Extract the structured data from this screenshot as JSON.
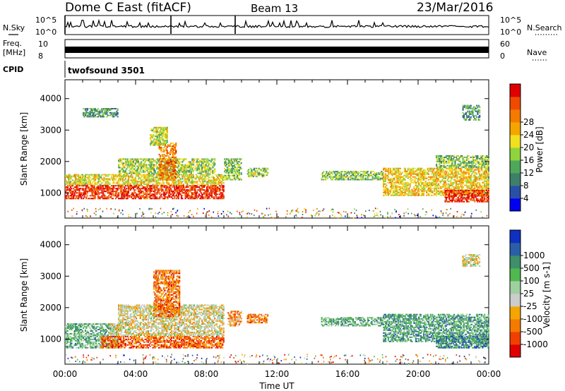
{
  "header": {
    "radar": "Dome C East (fitACF)",
    "beam": "Beam 13",
    "date": "23/Mar/2016"
  },
  "panels": {
    "nsky": {
      "label": "N.Sky",
      "ticks": [
        "10^5",
        "10^0"
      ]
    },
    "nsearch": {
      "label": "N.Search",
      "ticks": [
        "10^5",
        "10^0"
      ]
    },
    "freq": {
      "label_line1": "Freq.",
      "label_line2": "[MHz]",
      "ticks": [
        "10",
        "8"
      ]
    },
    "nave": {
      "label": "Nave",
      "ticks": [
        "60",
        "0"
      ]
    },
    "cpid": {
      "label": "CPID",
      "value": "twofsound 3501"
    }
  },
  "colors": {
    "power": [
      "#0000f0",
      "#2a4fa8",
      "#3e7f6a",
      "#4fa85a",
      "#8fd43c",
      "#f0e020",
      "#f5a500",
      "#f57a00",
      "#f04a00",
      "#e00000"
    ],
    "velocity": [
      "#e00000",
      "#f04000",
      "#f57a00",
      "#f5a500",
      "#cccccc",
      "#9fd09f",
      "#4fb84f",
      "#3e8f6a",
      "#2a5fa8",
      "#1030c0"
    ],
    "ground_scatter": "#bfbfbf"
  },
  "chart_data": [
    {
      "type": "heatmap",
      "name_key": "power",
      "ylabel": "Slant Range [km]",
      "xlabel": "Time UT",
      "x_ticks": [
        "00:00",
        "04:00",
        "08:00",
        "12:00",
        "16:00",
        "20:00",
        "00:00"
      ],
      "y_ticks": [
        1000,
        2000,
        3000,
        4000
      ],
      "ylim": [
        200,
        4600
      ],
      "xlim_hours": [
        0,
        24
      ],
      "colorbar": {
        "label": "Power [dB]",
        "ticks": [
          4,
          8,
          12,
          16,
          20,
          24,
          28
        ]
      },
      "regions": [
        {
          "t0": 0.0,
          "t1": 9.0,
          "r0": 800,
          "r1": 1250,
          "level": 0.9
        },
        {
          "t0": 0.0,
          "t1": 9.0,
          "r0": 1250,
          "r1": 1600,
          "level": 0.55
        },
        {
          "t0": 3.0,
          "t1": 8.5,
          "r0": 1600,
          "r1": 2100,
          "level": 0.45
        },
        {
          "t0": 5.3,
          "t1": 6.3,
          "r0": 1400,
          "r1": 2600,
          "level": 0.75
        },
        {
          "t0": 4.8,
          "t1": 5.8,
          "r0": 2500,
          "r1": 3100,
          "level": 0.5
        },
        {
          "t0": 1.0,
          "t1": 3.0,
          "r0": 3400,
          "r1": 3700,
          "level": 0.3
        },
        {
          "t0": 9.0,
          "t1": 10.0,
          "r0": 1400,
          "r1": 2100,
          "level": 0.4
        },
        {
          "t0": 10.3,
          "t1": 11.5,
          "r0": 1500,
          "r1": 1800,
          "level": 0.45
        },
        {
          "t0": 14.5,
          "t1": 18.0,
          "r0": 1400,
          "r1": 1700,
          "level": 0.4
        },
        {
          "t0": 18.0,
          "t1": 24.0,
          "r0": 900,
          "r1": 1800,
          "level": 0.6
        },
        {
          "t0": 21.5,
          "t1": 24.0,
          "r0": 700,
          "r1": 1100,
          "level": 0.9
        },
        {
          "t0": 21.0,
          "t1": 24.0,
          "r0": 1800,
          "r1": 2200,
          "level": 0.4
        },
        {
          "t0": 22.5,
          "t1": 23.5,
          "r0": 3300,
          "r1": 3800,
          "level": 0.3
        }
      ]
    },
    {
      "type": "heatmap",
      "name_key": "velocity",
      "ylabel": "Slant Range [km]",
      "xlabel": "Time UT",
      "x_ticks": [
        "00:00",
        "04:00",
        "08:00",
        "12:00",
        "16:00",
        "20:00",
        "00:00"
      ],
      "y_ticks": [
        1000,
        2000,
        3000,
        4000
      ],
      "ylim": [
        200,
        4600
      ],
      "xlim_hours": [
        0,
        24
      ],
      "colorbar": {
        "label": "Velocity [m s-1]",
        "ticks": [
          -1000,
          -500,
          -100,
          -25,
          25,
          100,
          500,
          1000
        ]
      },
      "regions": [
        {
          "t0": 0.0,
          "t1": 3.0,
          "r0": 700,
          "r1": 1500,
          "level": 0.65
        },
        {
          "t0": 2.0,
          "t1": 9.0,
          "r0": 700,
          "r1": 1100,
          "level": 0.2
        },
        {
          "t0": 2.5,
          "t1": 9.0,
          "r0": 1100,
          "r1": 1500,
          "level": 0.45
        },
        {
          "t0": 3.0,
          "t1": 9.0,
          "r0": 1500,
          "r1": 2100,
          "level": 0.45
        },
        {
          "t0": 5.0,
          "t1": 6.5,
          "r0": 1700,
          "r1": 3200,
          "level": 0.25
        },
        {
          "t0": 9.2,
          "t1": 10.0,
          "r0": 1400,
          "r1": 1900,
          "level": 0.3
        },
        {
          "t0": 10.3,
          "t1": 11.5,
          "r0": 1500,
          "r1": 1800,
          "level": 0.25
        },
        {
          "t0": 14.5,
          "t1": 18.0,
          "r0": 1400,
          "r1": 1700,
          "level": 0.65
        },
        {
          "t0": 18.0,
          "t1": 24.0,
          "r0": 900,
          "r1": 1800,
          "level": 0.7
        },
        {
          "t0": 21.0,
          "t1": 24.0,
          "r0": 700,
          "r1": 1100,
          "level": 0.75
        },
        {
          "t0": 22.5,
          "t1": 23.5,
          "r0": 3300,
          "r1": 3700,
          "level": 0.45
        }
      ]
    }
  ]
}
